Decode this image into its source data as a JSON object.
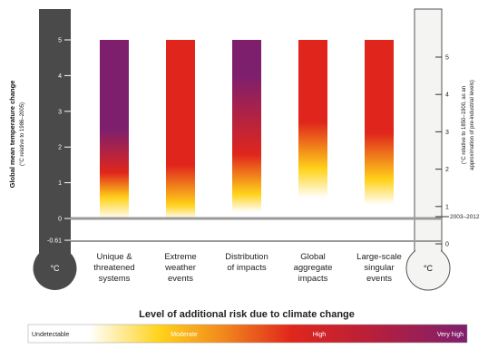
{
  "chart_data": {
    "type": "bar",
    "left_axis": {
      "label_main": "Global mean temperature change",
      "label_sub": "(°C relative to 1986–2005)",
      "ticks": [
        "5",
        "4",
        "3",
        "2",
        "1",
        "0",
        "-0.61"
      ],
      "unit": "°C"
    },
    "right_axis": {
      "label_main": "(°C relative to 1850–1900, as an",
      "label_sub": "approximation of pre-industrial levels)",
      "ticks": [
        "5",
        "4",
        "3",
        "2",
        "1",
        "0"
      ],
      "unit": "°C",
      "marker_label": "2003–2012"
    },
    "ylim": [
      -0.61,
      5
    ],
    "categories": [
      "Unique & threatened systems",
      "Extreme weather events",
      "Distribution of impacts",
      "Global aggregate impacts",
      "Large-scale singular events"
    ],
    "category_lines": [
      [
        "Unique &",
        "threatened",
        "systems"
      ],
      [
        "Extreme",
        "weather",
        "events"
      ],
      [
        "Distribution",
        "of impacts"
      ],
      [
        "Global",
        "aggregate",
        "impacts"
      ],
      [
        "Large-scale",
        "singular",
        "events"
      ]
    ],
    "risk_profiles": [
      {
        "category": "Unique & threatened systems",
        "undetectable_to": 0,
        "moderate_at": 0.6,
        "high_at": 1.3,
        "very_high_at": 2.5
      },
      {
        "category": "Extreme weather events",
        "undetectable_to": 0,
        "moderate_at": 0.4,
        "high_at": 1.5,
        "very_high_at": null
      },
      {
        "category": "Distribution of impacts",
        "undetectable_to": 0.2,
        "moderate_at": 0.7,
        "high_at": 1.8,
        "very_high_at": 4.0
      },
      {
        "category": "Global aggregate impacts",
        "undetectable_to": 0.6,
        "moderate_at": 1.4,
        "high_at": 2.7,
        "very_high_at": null
      },
      {
        "category": "Large-scale singular events",
        "undetectable_to": 0.4,
        "moderate_at": 1.1,
        "high_at": 2.4,
        "very_high_at": null
      }
    ],
    "legend": {
      "title": "Level of additional risk due to climate change",
      "levels": [
        "Undetectable",
        "Moderate",
        "High",
        "Very high"
      ],
      "colors": [
        "#ffffff",
        "#ffd21a",
        "#e0261c",
        "#7e1f6e"
      ]
    }
  }
}
